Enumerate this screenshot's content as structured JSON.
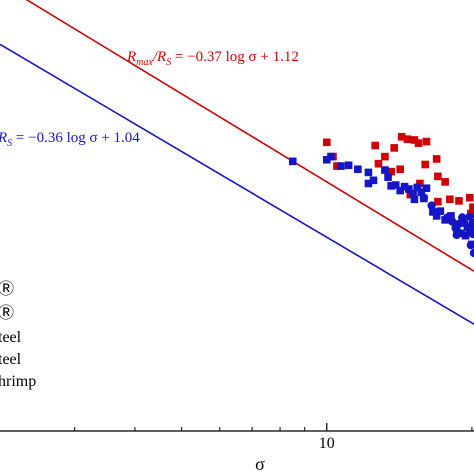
{
  "chart_data": {
    "type": "scatter",
    "title": "",
    "xlabel": "σ",
    "ylabel": "",
    "xscale": "log",
    "xlim": [
      2.1,
      20.2
    ],
    "ylim": [
      0.435,
      0.98
    ],
    "xticks": [
      {
        "value": 10,
        "label": "10"
      }
    ],
    "grid": false,
    "legend": {
      "placement": "bottom-left",
      "entries": [
        "Ⓡ",
        "Ⓡ",
        "teel",
        "teel",
        "hrimp"
      ]
    },
    "series": [
      {
        "color": "#d10000",
        "marker": "square",
        "fit": {
          "slope": -0.37,
          "intercept": 1.12
        },
        "equation": {
          "lhs_num": "R",
          "lhs_num_sub": "max",
          "lhs_den": "/R",
          "lhs_den_sub": "S",
          "rhs": " = −0.37 log σ + 1.12"
        },
        "points": [
          [
            10.0,
            0.8
          ],
          [
            10.3,
            0.782
          ],
          [
            10.5,
            0.77
          ],
          [
            12.6,
            0.796
          ],
          [
            12.8,
            0.773
          ],
          [
            13.2,
            0.782
          ],
          [
            13.6,
            0.763
          ],
          [
            13.8,
            0.793
          ],
          [
            14.2,
            0.766
          ],
          [
            14.3,
            0.807
          ],
          [
            14.7,
            0.804
          ],
          [
            15.2,
            0.803
          ],
          [
            15.5,
            0.799
          ],
          [
            16.1,
            0.801
          ],
          [
            14.9,
            0.734
          ],
          [
            15.6,
            0.748
          ],
          [
            16.0,
            0.772
          ],
          [
            16.9,
            0.779
          ],
          [
            17.0,
            0.757
          ],
          [
            17.6,
            0.75
          ],
          [
            17.0,
            0.725
          ],
          [
            18.0,
            0.728
          ],
          [
            18.8,
            0.726
          ],
          [
            19.8,
            0.73
          ],
          [
            19.9,
            0.71
          ],
          [
            20.1,
            0.718
          ]
        ]
      },
      {
        "color": "#1515c8",
        "marker": "square",
        "fit": {
          "slope": -0.36,
          "intercept": 1.04
        },
        "equation": {
          "lhs_num": "",
          "lhs_num_sub": "",
          "lhs_den": "R",
          "lhs_den_sub": "S",
          "rhs": " = −0.36 log σ + 1.04"
        },
        "points": [
          [
            8.5,
            0.776
          ],
          [
            10.0,
            0.778
          ],
          [
            10.2,
            0.782
          ],
          [
            10.7,
            0.77
          ],
          [
            11.1,
            0.771
          ],
          [
            11.6,
            0.766
          ],
          [
            12.2,
            0.762
          ],
          [
            12.5,
            0.752
          ],
          [
            12.2,
            0.748
          ],
          [
            13.2,
            0.765
          ],
          [
            13.4,
            0.756
          ],
          [
            13.6,
            0.745
          ],
          [
            13.9,
            0.746
          ],
          [
            14.2,
            0.739
          ],
          [
            14.5,
            0.744
          ],
          [
            14.8,
            0.741
          ],
          [
            15.1,
            0.735
          ],
          [
            15.2,
            0.728
          ],
          [
            15.4,
            0.743
          ],
          [
            15.7,
            0.737
          ],
          [
            15.9,
            0.729
          ],
          [
            16.1,
            0.742
          ],
          [
            16.6,
            0.712
          ],
          [
            16.9,
            0.707
          ],
          [
            17.2,
            0.713
          ],
          [
            17.6,
            0.702
          ],
          [
            18.1,
            0.707
          ],
          [
            18.6,
            0.691
          ],
          [
            19.0,
            0.685
          ],
          [
            19.4,
            0.682
          ],
          [
            19.8,
            0.689
          ],
          [
            20.0,
            0.671
          ]
        ]
      },
      {
        "color": "#1515c8",
        "marker": "circle",
        "points": [
          [
            15.9,
            0.73
          ],
          [
            16.5,
            0.72
          ],
          [
            17.8,
            0.705
          ],
          [
            18.2,
            0.7
          ],
          [
            18.5,
            0.692
          ],
          [
            18.8,
            0.697
          ],
          [
            19.1,
            0.705
          ],
          [
            19.3,
            0.698
          ],
          [
            18.6,
            0.683
          ],
          [
            19.6,
            0.692
          ],
          [
            19.8,
            0.706
          ],
          [
            19.9,
            0.67
          ],
          [
            20.0,
            0.69
          ],
          [
            20.1,
            0.698
          ],
          [
            20.1,
            0.684
          ],
          [
            20.2,
            0.66
          ]
        ]
      }
    ]
  }
}
